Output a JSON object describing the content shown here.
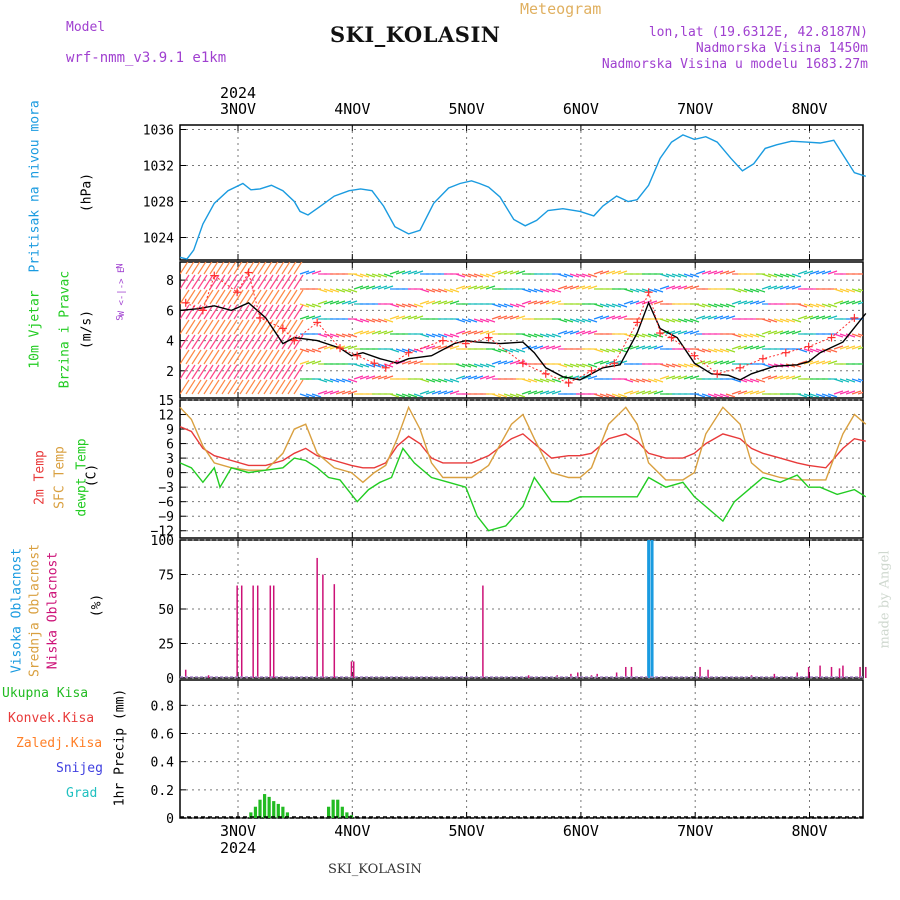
{
  "header": {
    "model_label": "Model",
    "model_name": "wrf-nmm_v3.9.1  e1km",
    "station": "SKI_KOLASIN",
    "meteogram": "Meteogram",
    "lonlat": "lon,lat (19.6312E, 42.8187N)",
    "elevation": "Nadmorska Visina 1450m",
    "model_elevation": "Nadmorska Visina u modelu 1683.27m",
    "footer_station": "SKI_KOLASIN",
    "watermark": "made by Angel"
  },
  "colors": {
    "pressure": "#1a9be0",
    "wind_speed": "#000000",
    "gust": "#ff3030",
    "temp2m": "#e83a3a",
    "sfc_temp": "#d9a040",
    "dewpoint": "#22cc22",
    "cloud_high": "#1a9be0",
    "cloud_mid": "#d9a040",
    "cloud_low": "#cc1177",
    "precip": "#22bb22",
    "grid": "#777777",
    "purple": "#a040d0"
  },
  "chart_data": [
    {
      "type": "line",
      "panel": "pressure",
      "ylabel_rotated": "Pritisak na nivou mora",
      "unit": "(hPa)",
      "yticks": [
        "1036",
        "1032",
        "1028",
        "1024"
      ],
      "ylim": [
        1021.5,
        1036.5
      ],
      "xlim": [
        0,
        6
      ],
      "x_top_year": "2024",
      "x_top_labels": [
        "3NOV",
        "4NOV",
        "5NOV",
        "6NOV",
        "7NOV",
        "8NOV"
      ],
      "series": [
        {
          "name": "Pritisak na nivou mora",
          "x": [
            0.0,
            0.06,
            0.12,
            0.2,
            0.3,
            0.42,
            0.55,
            0.62,
            0.7,
            0.8,
            0.9,
            1.0,
            1.05,
            1.12,
            1.22,
            1.35,
            1.48,
            1.58,
            1.68,
            1.78,
            1.88,
            2.0,
            2.1,
            2.22,
            2.35,
            2.45,
            2.55,
            2.62,
            2.7,
            2.8,
            2.92,
            3.02,
            3.12,
            3.22,
            3.35,
            3.5,
            3.62,
            3.7,
            3.82,
            3.92,
            4.0,
            4.1,
            4.2,
            4.3,
            4.4,
            4.5,
            4.6,
            4.7,
            4.82,
            4.92,
            5.02,
            5.12,
            5.22,
            5.35,
            5.48,
            5.6,
            5.72,
            5.82,
            5.9,
            6.0
          ],
          "values": [
            1021.8,
            1021.6,
            1022.6,
            1025.5,
            1027.8,
            1029.2,
            1030.0,
            1029.3,
            1029.4,
            1029.8,
            1029.2,
            1028.0,
            1026.9,
            1026.5,
            1027.4,
            1028.6,
            1029.2,
            1029.4,
            1029.2,
            1027.5,
            1025.2,
            1024.4,
            1024.8,
            1027.8,
            1029.5,
            1030.0,
            1030.3,
            1030.0,
            1029.6,
            1028.5,
            1026.0,
            1025.3,
            1025.9,
            1027.0,
            1027.2,
            1026.9,
            1026.4,
            1027.5,
            1028.6,
            1028.0,
            1028.2,
            1029.8,
            1032.8,
            1034.6,
            1035.4,
            1034.9,
            1035.2,
            1034.6,
            1032.8,
            1031.4,
            1032.2,
            1033.9,
            1034.3,
            1034.7,
            1034.6,
            1034.5,
            1034.8,
            1032.8,
            1031.2,
            1030.8
          ]
        }
      ]
    },
    {
      "type": "line",
      "panel": "wind",
      "ylabel_rotated_1": "10m Vjetar",
      "ylabel_rotated_2": "Brzina i Pravac",
      "unit": "(m/s)",
      "compass": "W  <-|->  E",
      "compass_n": "N",
      "compass_s": "S",
      "yticks": [
        "8",
        "6",
        "4",
        "2"
      ],
      "ylim": [
        0.2,
        9.2
      ],
      "xlim": [
        0,
        6
      ],
      "series": [
        {
          "name": "10m Vjetar",
          "x": [
            0.0,
            0.15,
            0.3,
            0.45,
            0.6,
            0.75,
            0.9,
            1.0,
            1.2,
            1.4,
            1.5,
            1.6,
            1.75,
            1.9,
            2.0,
            2.2,
            2.4,
            2.5,
            2.6,
            2.8,
            3.0,
            3.1,
            3.2,
            3.35,
            3.5,
            3.6,
            3.7,
            3.85,
            4.0,
            4.1,
            4.2,
            4.35,
            4.5,
            4.65,
            4.8,
            4.9,
            5.0,
            5.2,
            5.4,
            5.5,
            5.6,
            5.8,
            6.0
          ],
          "values": [
            6.0,
            6.1,
            6.3,
            6.0,
            6.5,
            5.5,
            3.8,
            4.2,
            4.0,
            3.5,
            3.0,
            3.2,
            2.8,
            2.5,
            2.8,
            3.0,
            3.8,
            4.0,
            3.9,
            3.8,
            3.9,
            3.2,
            2.2,
            1.6,
            1.4,
            1.8,
            2.2,
            2.4,
            4.5,
            6.5,
            4.8,
            4.2,
            2.5,
            1.8,
            1.7,
            1.4,
            1.8,
            2.3,
            2.4,
            2.6,
            3.2,
            3.9,
            5.8
          ]
        },
        {
          "name": "gust",
          "x": [
            0.05,
            0.2,
            0.3,
            0.5,
            0.6,
            0.7,
            0.9,
            1.0,
            1.2,
            1.4,
            1.55,
            1.7,
            1.8,
            2.0,
            2.3,
            2.5,
            2.7,
            3.0,
            3.2,
            3.4,
            3.6,
            3.8,
            4.0,
            4.1,
            4.2,
            4.3,
            4.5,
            4.7,
            4.9,
            5.1,
            5.3,
            5.5,
            5.7,
            5.9
          ],
          "values": [
            6.5,
            6.0,
            8.3,
            7.2,
            8.5,
            5.5,
            4.8,
            4.0,
            5.2,
            3.5,
            3.0,
            2.5,
            2.2,
            3.2,
            4.0,
            3.8,
            4.2,
            2.5,
            1.8,
            1.2,
            2.0,
            2.5,
            5.2,
            7.2,
            4.5,
            4.2,
            3.0,
            1.8,
            2.2,
            2.8,
            3.2,
            3.6,
            4.2,
            5.5
          ]
        }
      ]
    },
    {
      "type": "line",
      "panel": "temperature",
      "ylabel_rotated_1": "2m Temp",
      "ylabel_rotated_2": "SFC Temp",
      "ylabel_rotated_3": "dewpt Temp",
      "unit": "(C)",
      "yticks": [
        "15",
        "12",
        "9",
        "6",
        "3",
        "0",
        "−3",
        "−6",
        "−9",
        "−12"
      ],
      "ylim": [
        -13.5,
        15
      ],
      "xlim": [
        0,
        6
      ],
      "series": [
        {
          "name": "2m Temp",
          "x": [
            0.0,
            0.1,
            0.2,
            0.3,
            0.45,
            0.6,
            0.75,
            0.9,
            1.0,
            1.1,
            1.2,
            1.35,
            1.5,
            1.6,
            1.7,
            1.8,
            1.9,
            2.0,
            2.1,
            2.2,
            2.3,
            2.4,
            2.55,
            2.7,
            2.9,
            3.0,
            3.1,
            3.25,
            3.4,
            3.5,
            3.6,
            3.75,
            3.9,
            4.0,
            4.1,
            4.25,
            4.4,
            4.5,
            4.6,
            4.75,
            4.9,
            5.0,
            5.1,
            5.25,
            5.4,
            5.5,
            5.65,
            5.8,
            5.9,
            6.0
          ],
          "values": [
            9.5,
            8.5,
            5.0,
            3.5,
            2.5,
            1.5,
            1.5,
            2.5,
            4.0,
            5.0,
            3.5,
            2.5,
            1.5,
            1.0,
            1.0,
            2.0,
            5.5,
            7.5,
            6.0,
            3.0,
            2.0,
            2.0,
            2.0,
            3.5,
            7.0,
            8.0,
            6.0,
            3.0,
            3.5,
            3.5,
            4.0,
            7.0,
            8.0,
            6.5,
            4.0,
            3.0,
            3.0,
            4.0,
            6.0,
            8.0,
            7.0,
            5.0,
            4.0,
            3.0,
            2.0,
            1.5,
            1.0,
            5.0,
            7.0,
            6.5
          ]
        },
        {
          "name": "SFC Temp",
          "x": [
            0.0,
            0.1,
            0.2,
            0.3,
            0.45,
            0.6,
            0.75,
            0.9,
            1.0,
            1.1,
            1.2,
            1.35,
            1.5,
            1.6,
            1.7,
            1.8,
            1.9,
            2.0,
            2.1,
            2.2,
            2.3,
            2.4,
            2.55,
            2.7,
            2.9,
            3.0,
            3.1,
            3.25,
            3.4,
            3.5,
            3.6,
            3.75,
            3.9,
            4.0,
            4.1,
            4.25,
            4.4,
            4.5,
            4.6,
            4.75,
            4.9,
            5.0,
            5.1,
            5.25,
            5.4,
            5.5,
            5.65,
            5.8,
            5.9,
            6.0
          ],
          "values": [
            13.5,
            11.0,
            5.5,
            2.0,
            1.0,
            0.5,
            0.5,
            4.0,
            9.0,
            10.0,
            4.0,
            1.0,
            0.0,
            -2.0,
            0.0,
            1.5,
            7.0,
            13.5,
            9.0,
            2.0,
            -1.0,
            -1.0,
            -1.0,
            1.5,
            10.0,
            12.0,
            7.0,
            0.0,
            -1.0,
            -1.0,
            1.0,
            10.0,
            13.5,
            10.0,
            2.0,
            -1.5,
            -1.5,
            0.0,
            8.0,
            13.5,
            10.0,
            2.0,
            0.0,
            -1.0,
            -1.5,
            -1.5,
            -1.5,
            8.0,
            12.0,
            10.0
          ]
        },
        {
          "name": "dewpt Temp",
          "x": [
            0.0,
            0.1,
            0.2,
            0.3,
            0.35,
            0.45,
            0.6,
            0.75,
            0.9,
            1.0,
            1.1,
            1.2,
            1.3,
            1.4,
            1.55,
            1.65,
            1.75,
            1.85,
            1.95,
            2.05,
            2.2,
            2.35,
            2.5,
            2.6,
            2.7,
            2.85,
            3.0,
            3.1,
            3.25,
            3.4,
            3.5,
            3.6,
            3.75,
            3.9,
            4.0,
            4.1,
            4.25,
            4.4,
            4.5,
            4.6,
            4.75,
            4.85,
            5.0,
            5.1,
            5.25,
            5.4,
            5.5,
            5.6,
            5.75,
            5.9,
            6.0
          ],
          "values": [
            2.0,
            1.0,
            -2.0,
            1.0,
            -3.0,
            1.0,
            0.0,
            0.5,
            1.0,
            3.0,
            2.5,
            1.0,
            -1.0,
            -1.5,
            -6.0,
            -3.5,
            -2.0,
            -1.0,
            5.0,
            2.0,
            -1.0,
            -2.0,
            -3.0,
            -9.0,
            -12.0,
            -11.0,
            -7.0,
            -1.0,
            -6.0,
            -6.0,
            -5.0,
            -5.0,
            -5.0,
            -5.0,
            -5.0,
            -1.0,
            -3.0,
            -2.0,
            -5.0,
            -7.0,
            -10.0,
            -6.0,
            -3.0,
            -1.0,
            -2.0,
            -0.5,
            -3.0,
            -3.0,
            -4.5,
            -3.5,
            -5.0
          ]
        }
      ]
    },
    {
      "type": "bar",
      "panel": "cloud",
      "ylabel_rotated_1": "Visoka Oblacnost",
      "ylabel_rotated_2": "Srednja Oblacnost",
      "ylabel_rotated_3": "Niska Oblacnost",
      "unit": "(%)",
      "yticks": [
        "100",
        "75",
        "50",
        "25",
        "0"
      ],
      "ylim": [
        0,
        100
      ],
      "xlim": [
        0,
        6
      ],
      "series": [
        {
          "name": "Niska Oblacnost",
          "x": [
            0.05,
            0.25,
            0.5,
            0.54,
            0.64,
            0.68,
            0.79,
            0.82,
            1.2,
            1.25,
            1.35,
            1.5,
            1.52,
            2.65,
            3.05,
            3.3,
            3.42,
            3.48,
            3.6,
            3.65,
            3.82,
            3.9,
            3.95,
            4.55,
            4.62,
            5.0,
            5.2,
            5.4,
            5.5,
            5.6,
            5.7,
            5.77,
            5.8,
            5.95,
            6.0
          ],
          "values": [
            6,
            2,
            67,
            67,
            67,
            67,
            67,
            67,
            87,
            75,
            68,
            12,
            12,
            67,
            2,
            2,
            3,
            4,
            2,
            3,
            4,
            8,
            8,
            8,
            6,
            2,
            3,
            4,
            8,
            9,
            8,
            7,
            9,
            8,
            8
          ]
        },
        {
          "name": "Visoka Oblacnost",
          "x": [
            4.1,
            4.13
          ],
          "values": [
            100,
            100
          ]
        },
        {
          "name": "Srednja Oblacnost",
          "x": [],
          "values": []
        }
      ]
    },
    {
      "type": "bar",
      "panel": "precip",
      "legend": [
        "Ukupna Kisa",
        "Konvek.Kisa",
        "Zaledj.Kisa",
        "Snijeg",
        "Grad"
      ],
      "ylabel_rotated": "1hr Precip (mm)",
      "yticks": [
        "0.8",
        "0.6",
        "0.4",
        "0.2",
        "0"
      ],
      "ylim": [
        0,
        0.98
      ],
      "xlim": [
        0,
        6
      ],
      "x_bottom_labels": [
        "3NOV",
        "4NOV",
        "5NOV",
        "6NOV",
        "7NOV",
        "8NOV"
      ],
      "x_bottom_year": "2024",
      "series": [
        {
          "name": "Ukupna Kisa",
          "x": [
            0.62,
            0.66,
            0.7,
            0.74,
            0.78,
            0.82,
            0.86,
            0.9,
            0.94,
            1.3,
            1.34,
            1.38,
            1.42,
            1.46,
            1.5
          ],
          "values": [
            0.04,
            0.08,
            0.13,
            0.17,
            0.15,
            0.12,
            0.1,
            0.08,
            0.04,
            0.08,
            0.13,
            0.13,
            0.08,
            0.04,
            0.02
          ]
        }
      ]
    }
  ]
}
